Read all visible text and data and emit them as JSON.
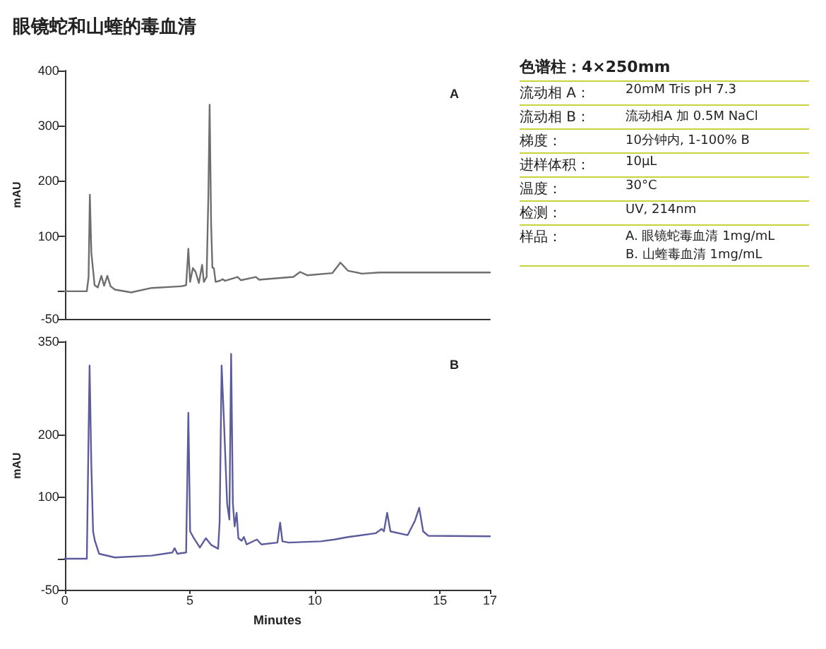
{
  "chart_data": [
    {
      "type": "line",
      "title": "眼镜蛇和山蝰的毒血清",
      "ylabel": "mAU",
      "annotations": [
        "A"
      ],
      "tick_labels": "y",
      "marker": "none",
      "line_style": "solid",
      "xlim": [
        0,
        17
      ],
      "ylim": [
        -50,
        400
      ],
      "yticks": [
        -50,
        {
          "value": 0,
          "label": null
        },
        100,
        200,
        300,
        400
      ],
      "series": [
        {
          "color": "#6e6e6e",
          "x": [
            0,
            0.88,
            0.95,
            1.0,
            1.06,
            1.19,
            1.32,
            1.46,
            1.57,
            1.7,
            1.83,
            2.0,
            2.65,
            3.47,
            4.66,
            4.85,
            4.94,
            5.01,
            5.12,
            5.23,
            5.36,
            5.49,
            5.56,
            5.67,
            5.74,
            5.79,
            5.85,
            5.9,
            5.96,
            6.03,
            6.2,
            6.31,
            6.4,
            6.91,
            7.04,
            7.64,
            7.77,
            9.14,
            9.41,
            9.69,
            10.7,
            11.02,
            11.33,
            11.88,
            12.6,
            17
          ],
          "values": [
            0,
            0,
            26,
            175,
            70,
            11,
            7,
            28,
            10,
            28,
            9,
            3,
            -2,
            6,
            9,
            11,
            77,
            17,
            42,
            35,
            15,
            48,
            17,
            26,
            174,
            338,
            122,
            43,
            42,
            17,
            19,
            22,
            19,
            26,
            20,
            26,
            21,
            26,
            35,
            29,
            33,
            52,
            37,
            32,
            34,
            34
          ]
        }
      ]
    },
    {
      "type": "line",
      "xlabel": "Minutes",
      "ylabel": "mAU",
      "annotations": [
        "B"
      ],
      "marker": "none",
      "line_style": "solid",
      "xlim": [
        0,
        17
      ],
      "xticks": [
        0,
        5,
        10,
        15,
        17
      ],
      "ylim": [
        -50,
        350
      ],
      "yticks": [
        -50,
        {
          "value": 0,
          "label": null
        },
        100,
        200,
        350
      ],
      "series": [
        {
          "color": "#5c5c9c",
          "x": [
            0,
            0.88,
            0.95,
            0.99,
            1.06,
            1.13,
            1.2,
            1.37,
            2.0,
            3.47,
            4.3,
            4.39,
            4.5,
            4.85,
            4.94,
            5.01,
            5.16,
            5.4,
            5.64,
            5.86,
            6.13,
            6.19,
            6.27,
            6.36,
            6.49,
            6.58,
            6.65,
            6.72,
            6.79,
            6.87,
            6.94,
            7.07,
            7.16,
            7.27,
            7.68,
            7.86,
            8.5,
            8.61,
            8.7,
            8.96,
            10.24,
            10.79,
            11.33,
            11.7,
            12.43,
            12.67,
            12.76,
            12.89,
            13.02,
            13.71,
            14.0,
            14.17,
            14.33,
            14.53,
            17
          ],
          "values": [
            0,
            0,
            202,
            311,
            150,
            44,
            29,
            8,
            2,
            5,
            10,
            17,
            8,
            10,
            235,
            44,
            33,
            18,
            33,
            22,
            16,
            59,
            311,
            225,
            89,
            63,
            330,
            89,
            52,
            74,
            33,
            29,
            35,
            23,
            31,
            23,
            26,
            58,
            28,
            26,
            28,
            31,
            35,
            37,
            41,
            48,
            44,
            74,
            44,
            38,
            61,
            82,
            44,
            37,
            36
          ]
        }
      ]
    },
    {
      "type": "other",
      "title": "色谱柱：4×250mm",
      "annotations": [
        "流动相 A：",
        "20mM Tris pH 7.3",
        "流动相 B：",
        "流动相A 加 0.5M NaCl",
        "梯度：",
        "10分钟内, 1-100% B",
        "进样体积：",
        "10μL",
        "温度：",
        "30°C",
        "检测：",
        "UV, 214nm",
        "样品：",
        "A. 眼镜蛇毒血清 1mg/mL\nB. 山蝰毒血清 1mg/mL"
      ]
    }
  ]
}
